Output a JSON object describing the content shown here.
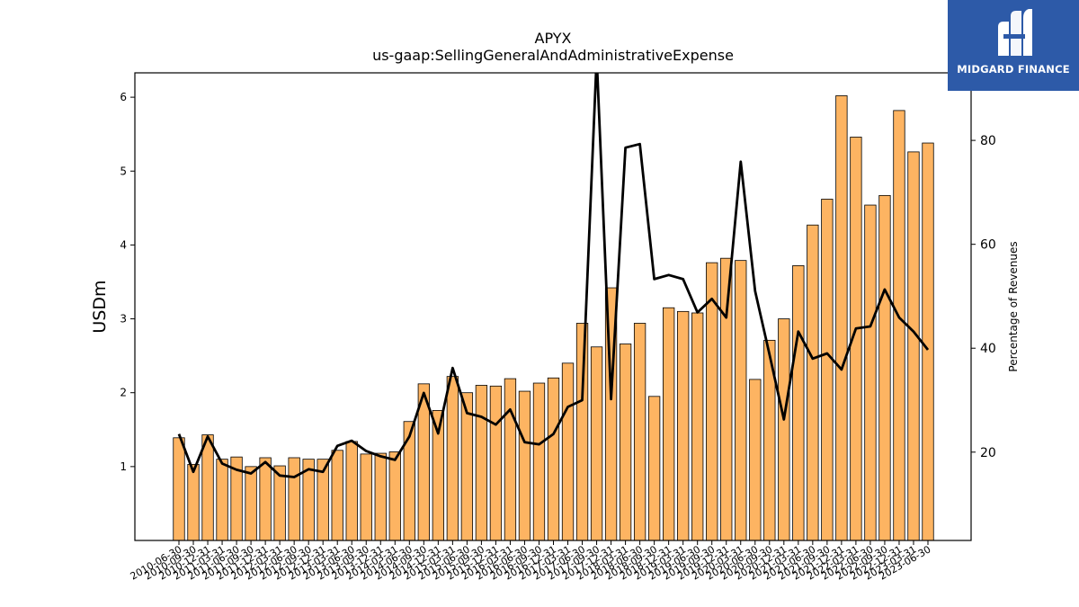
{
  "logo": {
    "text": "MIDGARD FINANCE",
    "icon": "midgard-logo-icon",
    "color": "#2d5aa8"
  },
  "chart_data": {
    "type": "bar",
    "title": "APYX",
    "subtitle": "us-gaap:SellingGeneralAndAdministrativeExpense",
    "ylabel": "USDm",
    "y2label": "Percentage of Revenues",
    "ylim": [
      0,
      6.33
    ],
    "y2lim": [
      3,
      93
    ],
    "yticks": [
      1,
      2,
      3,
      4,
      5,
      6
    ],
    "y2ticks": [
      20,
      40,
      60,
      80
    ],
    "bar_color": "#fdb462",
    "line_color": "#000000",
    "categories": [
      "2010-06-30",
      "2010-09-30",
      "2010-12-31",
      "2011-03-31",
      "2011-06-30",
      "2011-09-30",
      "2011-12-31",
      "2012-03-31",
      "2012-06-30",
      "2012-09-30",
      "2012-12-31",
      "2013-03-31",
      "2013-06-30",
      "2013-09-30",
      "2013-12-31",
      "2014-03-31",
      "2014-06-30",
      "2014-09-30",
      "2014-12-31",
      "2015-03-31",
      "2015-06-30",
      "2015-09-30",
      "2015-12-31",
      "2016-03-31",
      "2016-06-30",
      "2016-09-30",
      "2016-12-31",
      "2017-03-31",
      "2017-06-30",
      "2017-09-30",
      "2017-12-31",
      "2018-03-31",
      "2018-06-30",
      "2018-09-30",
      "2018-12-31",
      "2019-03-31",
      "2019-06-30",
      "2019-09-30",
      "2019-12-31",
      "2020-03-31",
      "2020-06-30",
      "2020-09-30",
      "2020-12-31",
      "2021-03-31",
      "2021-06-30",
      "2021-09-30",
      "2021-12-31",
      "2022-03-31",
      "2022-06-30",
      "2022-09-30",
      "2022-12-31",
      "2023-03-31",
      "2023-06-30"
    ],
    "series": [
      {
        "name": "",
        "kind": "bar",
        "axis": "left",
        "values": [
          1.39,
          1.03,
          1.43,
          1.1,
          1.13,
          1.0,
          1.12,
          1.01,
          1.12,
          1.1,
          1.1,
          1.22,
          1.34,
          1.17,
          1.18,
          1.2,
          1.61,
          2.12,
          1.76,
          2.22,
          2.0,
          2.1,
          2.09,
          2.19,
          2.02,
          2.13,
          2.2,
          2.4,
          2.94,
          2.62,
          3.42,
          2.66,
          2.94,
          1.95,
          3.15,
          3.1,
          3.08,
          3.76,
          3.82,
          3.79,
          2.18,
          2.71,
          3.0,
          3.72,
          4.27,
          4.62,
          6.02,
          5.46,
          4.54,
          4.67,
          5.82,
          5.26,
          5.38
        ]
      },
      {
        "name": "",
        "kind": "line",
        "axis": "right",
        "values": [
          23.5,
          16.2,
          23.0,
          17.8,
          16.6,
          15.9,
          18.1,
          15.5,
          15.2,
          16.7,
          16.2,
          21.2,
          22.2,
          20.2,
          19.2,
          18.5,
          23.0,
          31.4,
          23.6,
          36.2,
          27.5,
          26.8,
          25.3,
          28.2,
          21.9,
          21.5,
          23.5,
          28.7,
          30.0,
          96.0,
          30.2,
          78.6,
          79.3,
          53.3,
          54.1,
          53.3,
          46.9,
          49.5,
          45.9,
          75.9,
          51.0,
          38.8,
          26.3,
          43.2,
          38.0,
          39.0,
          35.9,
          43.8,
          44.2,
          51.3,
          45.9,
          43.2,
          39.7
        ]
      }
    ],
    "grid": false,
    "legend": "none"
  }
}
